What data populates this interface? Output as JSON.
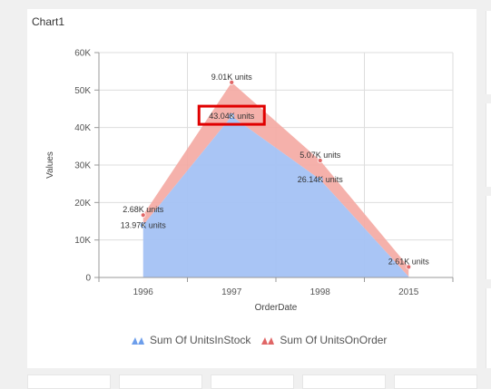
{
  "card": {
    "title": "Chart1"
  },
  "chart_data": {
    "type": "area",
    "categories": [
      "1996",
      "1997",
      "1998",
      "2015"
    ],
    "series": [
      {
        "name": "Sum Of UnitsInStock",
        "values": [
          13970,
          43040,
          26140,
          200
        ],
        "labels": [
          "13.97K units",
          "43.04K units",
          "26.14K units",
          ""
        ],
        "color": "#a4c2f4"
      },
      {
        "name": "Sum Of UnitsOnOrder",
        "values": [
          2680,
          9010,
          5070,
          2610
        ],
        "labels": [
          "2.68K units",
          "9.01K units",
          "5.07K units",
          "2.61K units"
        ],
        "color": "#f4a9a2"
      }
    ],
    "stacked": true,
    "xlabel": "OrderDate",
    "ylabel": "Values",
    "ylim": [
      0,
      60000
    ],
    "yticks": [
      0,
      10000,
      20000,
      30000,
      40000,
      50000,
      60000
    ],
    "ytick_labels": [
      "0",
      "10K",
      "20K",
      "30K",
      "40K",
      "50K",
      "60K"
    ],
    "grid": true,
    "legend": "bottom",
    "highlight_color": "#e00000"
  }
}
